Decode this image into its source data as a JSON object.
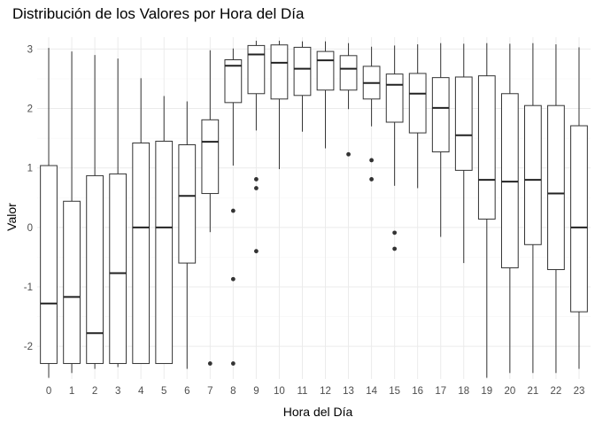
{
  "chart_data": {
    "type": "boxplot",
    "title": "Distribución de los Valores por Hora del Día",
    "xlabel": "Hora del Día",
    "ylabel": "Valor",
    "ylim": [
      -2.55,
      3.2
    ],
    "yticks": [
      -2,
      -1,
      0,
      1,
      2,
      3
    ],
    "grid": true,
    "categories": [
      "0",
      "1",
      "2",
      "3",
      "4",
      "5",
      "6",
      "7",
      "8",
      "9",
      "10",
      "11",
      "12",
      "13",
      "14",
      "15",
      "16",
      "17",
      "18",
      "19",
      "20",
      "21",
      "22",
      "23"
    ],
    "boxes": [
      {
        "min": -2.53,
        "q1": -2.29,
        "median": -1.28,
        "q3": 1.04,
        "max": 3.02,
        "outliers": []
      },
      {
        "min": -2.45,
        "q1": -2.29,
        "median": -1.17,
        "q3": 0.44,
        "max": 2.96,
        "outliers": []
      },
      {
        "min": -2.38,
        "q1": -2.29,
        "median": -1.78,
        "q3": 0.87,
        "max": 2.9,
        "outliers": []
      },
      {
        "min": -2.35,
        "q1": -2.29,
        "median": -0.77,
        "q3": 0.9,
        "max": 2.84,
        "outliers": []
      },
      {
        "min": -2.29,
        "q1": -2.29,
        "median": 0.0,
        "q3": 1.42,
        "max": 2.51,
        "outliers": []
      },
      {
        "min": -2.29,
        "q1": -2.29,
        "median": 0.0,
        "q3": 1.45,
        "max": 2.21,
        "outliers": []
      },
      {
        "min": -2.38,
        "q1": -0.6,
        "median": 0.53,
        "q3": 1.39,
        "max": 2.12,
        "outliers": []
      },
      {
        "min": -0.08,
        "q1": 0.57,
        "median": 1.44,
        "q3": 1.81,
        "max": 2.98,
        "outliers": [
          -2.29
        ]
      },
      {
        "min": 1.04,
        "q1": 2.1,
        "median": 2.72,
        "q3": 2.82,
        "max": 3.01,
        "outliers": [
          0.28,
          -0.87,
          -2.29
        ]
      },
      {
        "min": 1.63,
        "q1": 2.25,
        "median": 2.91,
        "q3": 3.06,
        "max": 3.14,
        "outliers": [
          0.81,
          0.66,
          -0.4
        ]
      },
      {
        "min": 0.98,
        "q1": 2.16,
        "median": 2.77,
        "q3": 3.07,
        "max": 3.14,
        "outliers": []
      },
      {
        "min": 1.61,
        "q1": 2.22,
        "median": 2.67,
        "q3": 3.03,
        "max": 3.13,
        "outliers": []
      },
      {
        "min": 1.33,
        "q1": 2.31,
        "median": 2.81,
        "q3": 2.96,
        "max": 3.13,
        "outliers": []
      },
      {
        "min": 1.99,
        "q1": 2.31,
        "median": 2.67,
        "q3": 2.89,
        "max": 3.1,
        "outliers": [
          1.23
        ]
      },
      {
        "min": 1.7,
        "q1": 2.16,
        "median": 2.43,
        "q3": 2.71,
        "max": 3.04,
        "outliers": [
          1.13,
          0.81
        ]
      },
      {
        "min": 0.7,
        "q1": 1.77,
        "median": 2.4,
        "q3": 2.58,
        "max": 3.06,
        "outliers": [
          -0.09,
          -0.36
        ]
      },
      {
        "min": 0.66,
        "q1": 1.59,
        "median": 2.25,
        "q3": 2.59,
        "max": 3.08,
        "outliers": []
      },
      {
        "min": -0.16,
        "q1": 1.27,
        "median": 2.01,
        "q3": 2.52,
        "max": 3.1,
        "outliers": []
      },
      {
        "min": -0.6,
        "q1": 0.96,
        "median": 1.55,
        "q3": 2.53,
        "max": 3.09,
        "outliers": []
      },
      {
        "min": -2.53,
        "q1": 0.14,
        "median": 0.8,
        "q3": 2.55,
        "max": 3.1,
        "outliers": []
      },
      {
        "min": -2.45,
        "q1": -0.68,
        "median": 0.77,
        "q3": 2.25,
        "max": 3.09,
        "outliers": []
      },
      {
        "min": -2.45,
        "q1": -0.29,
        "median": 0.8,
        "q3": 2.05,
        "max": 3.1,
        "outliers": []
      },
      {
        "min": -2.45,
        "q1": -0.71,
        "median": 0.57,
        "q3": 2.05,
        "max": 3.08,
        "outliers": []
      },
      {
        "min": -2.38,
        "q1": -1.42,
        "median": 0.0,
        "q3": 1.71,
        "max": 3.03,
        "outliers": []
      }
    ]
  }
}
